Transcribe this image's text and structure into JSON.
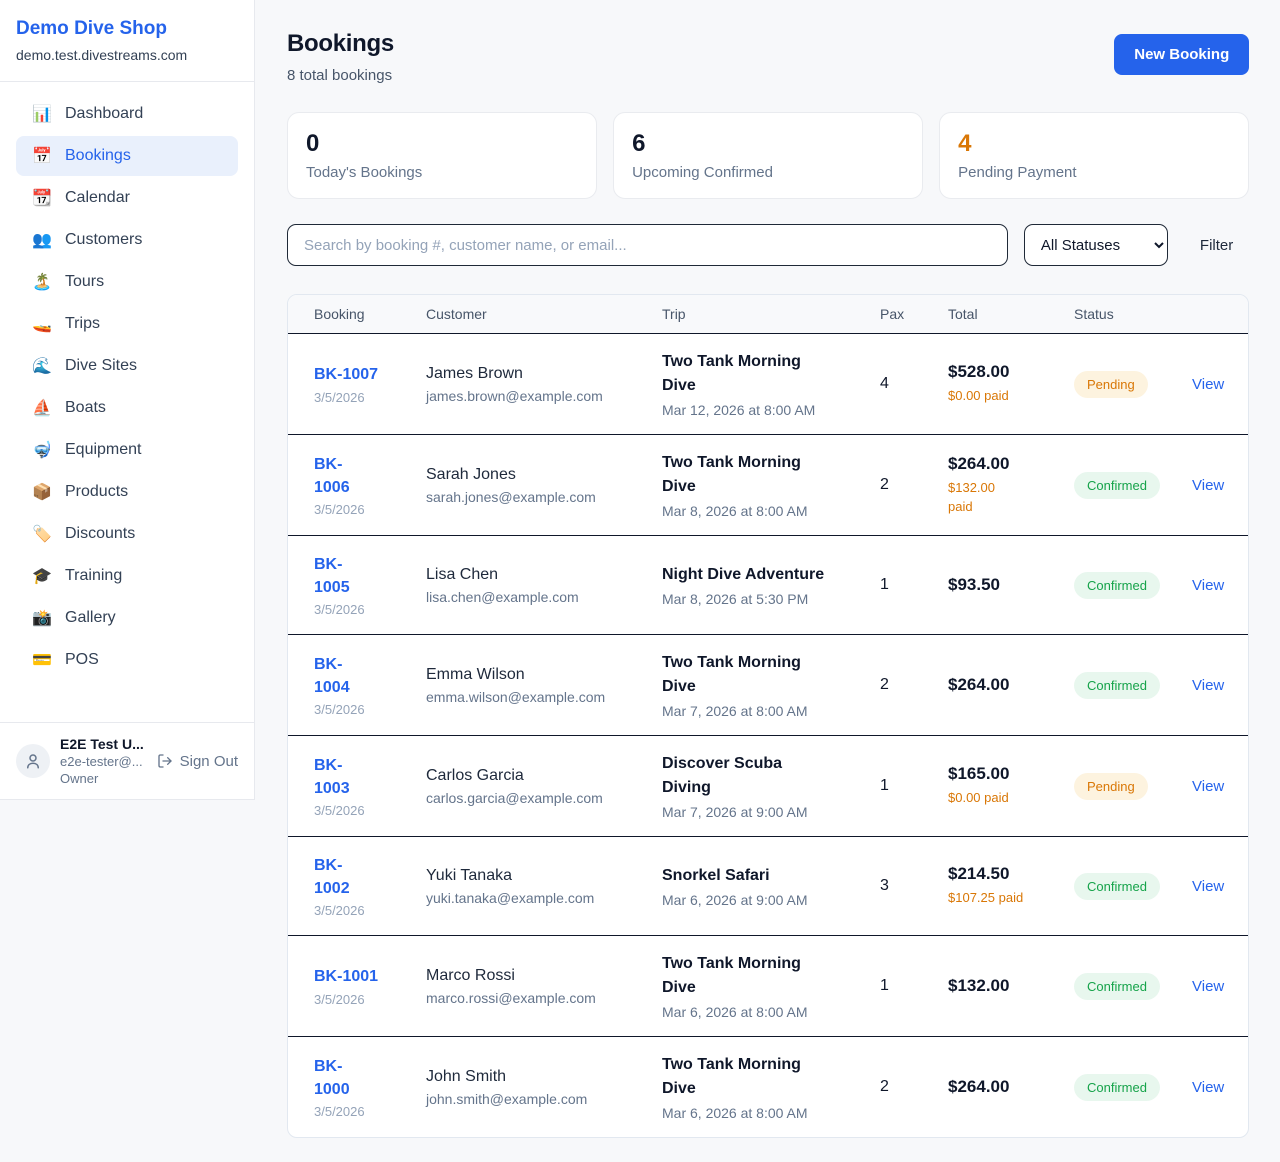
{
  "sidebar": {
    "brand": {
      "name": "Demo Dive Shop",
      "domain": "demo.test.divestreams.com"
    },
    "items": [
      {
        "label": "Dashboard",
        "slug": "dashboard",
        "icon": "bar-chart-icon",
        "glyph": "📊",
        "active": false
      },
      {
        "label": "Bookings",
        "slug": "bookings",
        "icon": "calendar-date-icon",
        "glyph": "📅",
        "active": true
      },
      {
        "label": "Calendar",
        "slug": "calendar",
        "icon": "tear-calendar-icon",
        "glyph": "📆",
        "active": false
      },
      {
        "label": "Customers",
        "slug": "customers",
        "icon": "people-icon",
        "glyph": "👥",
        "active": false
      },
      {
        "label": "Tours",
        "slug": "tours",
        "icon": "island-icon",
        "glyph": "🏝️",
        "active": false
      },
      {
        "label": "Trips",
        "slug": "trips",
        "icon": "speedboat-icon",
        "glyph": "🚤",
        "active": false
      },
      {
        "label": "Dive Sites",
        "slug": "dive-sites",
        "icon": "wave-icon",
        "glyph": "🌊",
        "active": false
      },
      {
        "label": "Boats",
        "slug": "boats",
        "icon": "sailboat-icon",
        "glyph": "⛵",
        "active": false
      },
      {
        "label": "Equipment",
        "slug": "equipment",
        "icon": "diving-mask-icon",
        "glyph": "🤿",
        "active": false
      },
      {
        "label": "Products",
        "slug": "products",
        "icon": "package-icon",
        "glyph": "📦",
        "active": false
      },
      {
        "label": "Discounts",
        "slug": "discounts",
        "icon": "tag-icon",
        "glyph": "🏷️",
        "active": false
      },
      {
        "label": "Training",
        "slug": "training",
        "icon": "graduation-cap-icon",
        "glyph": "🎓",
        "active": false
      },
      {
        "label": "Gallery",
        "slug": "gallery",
        "icon": "camera-flash-icon",
        "glyph": "📸",
        "active": false
      },
      {
        "label": "POS",
        "slug": "pos",
        "icon": "credit-card-icon",
        "glyph": "💳",
        "active": false
      }
    ],
    "user": {
      "name": "E2E Test U...",
      "email": "e2e-tester@...",
      "role": "Owner",
      "sign_out_label": "Sign Out"
    }
  },
  "header": {
    "title": "Bookings",
    "subtitle": "8 total bookings",
    "new_booking_label": "New Booking"
  },
  "stats": [
    {
      "value": "0",
      "label": "Today's Bookings",
      "value_color": "#0f172a"
    },
    {
      "value": "6",
      "label": "Upcoming Confirmed",
      "value_color": "#0f172a"
    },
    {
      "value": "4",
      "label": "Pending Payment",
      "value_color": "#d97706"
    }
  ],
  "filters": {
    "search_placeholder": "Search by booking #, customer name, or email...",
    "status_selected": "All Statuses",
    "filter_label": "Filter"
  },
  "table": {
    "columns": [
      "Booking",
      "Customer",
      "Trip",
      "Pax",
      "Total",
      "Status"
    ],
    "view_label": "View",
    "rows": [
      {
        "id": "BK-1007",
        "date": "3/5/2026",
        "customer": "James Brown",
        "email": "james.brown@example.com",
        "trip": "Two Tank Morning\nDive",
        "trip_datetime": "Mar 12, 2026 at 8:00 AM",
        "pax": "4",
        "total": "$528.00",
        "paid": "$0.00 paid",
        "status": "Pending"
      },
      {
        "id": "BK-\n1006",
        "date": "3/5/2026",
        "customer": "Sarah Jones",
        "email": "sarah.jones@example.com",
        "trip": "Two Tank Morning\nDive",
        "trip_datetime": "Mar 8, 2026 at 8:00 AM",
        "pax": "2",
        "total": "$264.00",
        "paid": "$132.00\npaid",
        "status": "Confirmed"
      },
      {
        "id": "BK-\n1005",
        "date": "3/5/2026",
        "customer": "Lisa Chen",
        "email": "lisa.chen@example.com",
        "trip": "Night Dive Adventure",
        "trip_datetime": "Mar 8, 2026 at 5:30 PM",
        "pax": "1",
        "total": "$93.50",
        "paid": "",
        "status": "Confirmed"
      },
      {
        "id": "BK-\n1004",
        "date": "3/5/2026",
        "customer": "Emma Wilson",
        "email": "emma.wilson@example.com",
        "trip": "Two Tank Morning\nDive",
        "trip_datetime": "Mar 7, 2026 at 8:00 AM",
        "pax": "2",
        "total": "$264.00",
        "paid": "",
        "status": "Confirmed"
      },
      {
        "id": "BK-\n1003",
        "date": "3/5/2026",
        "customer": "Carlos Garcia",
        "email": "carlos.garcia@example.com",
        "trip": "Discover Scuba\nDiving",
        "trip_datetime": "Mar 7, 2026 at 9:00 AM",
        "pax": "1",
        "total": "$165.00",
        "paid": "$0.00 paid",
        "status": "Pending"
      },
      {
        "id": "BK-\n1002",
        "date": "3/5/2026",
        "customer": "Yuki Tanaka",
        "email": "yuki.tanaka@example.com",
        "trip": "Snorkel Safari",
        "trip_datetime": "Mar 6, 2026 at 9:00 AM",
        "pax": "3",
        "total": "$214.50",
        "paid": "$107.25 paid",
        "status": "Confirmed"
      },
      {
        "id": "BK-1001",
        "date": "3/5/2026",
        "customer": "Marco Rossi",
        "email": "marco.rossi@example.com",
        "trip": "Two Tank Morning\nDive",
        "trip_datetime": "Mar 6, 2026 at 8:00 AM",
        "pax": "1",
        "total": "$132.00",
        "paid": "",
        "status": "Confirmed"
      },
      {
        "id": "BK-\n1000",
        "date": "3/5/2026",
        "customer": "John Smith",
        "email": "john.smith@example.com",
        "trip": "Two Tank Morning\nDive",
        "trip_datetime": "Mar 6, 2026 at 8:00 AM",
        "pax": "2",
        "total": "$264.00",
        "paid": "",
        "status": "Confirmed"
      }
    ]
  },
  "colors": {
    "accent_blue": "#2563eb",
    "orange": "#d97706",
    "pending_badge_bg": "#fdf3df",
    "confirmed_badge_bg": "#e8f7ee",
    "confirmed_text": "#16a34a",
    "page_bg": "#f7f8fa"
  }
}
